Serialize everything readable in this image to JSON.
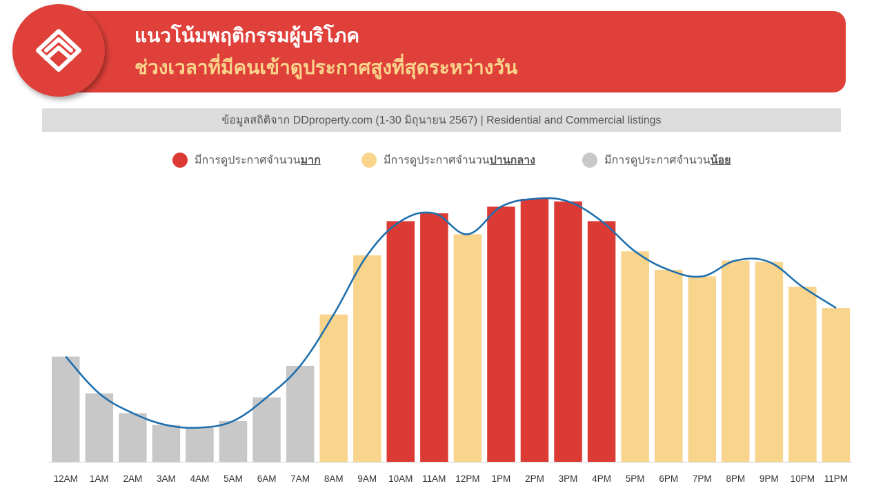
{
  "header": {
    "title_line1": "แนวโน้มพฤติกรรมผู้บริโภค",
    "title_line2": "ช่วงเวลาที่มีคนเข้าดูประกาศสูงที่สุดระหว่างวัน",
    "logo_icon": "ddproperty-house-logo-icon"
  },
  "source_text": "ข้อมูลสถิติจาก DDproperty.com (1-30 มิถุนายน 2567) | Residential and Commercial listings",
  "legend": [
    {
      "prefix": "มีการดูประกาศจำนวน",
      "emphasis": "มาก",
      "color": "#db3b34"
    },
    {
      "prefix": "มีการดูประกาศจำนวน",
      "emphasis": "ปานกลาง",
      "color": "#f8d48d"
    },
    {
      "prefix": "มีการดูประกาศจำนวน",
      "emphasis": "น้อย",
      "color": "#c8c8c8"
    }
  ],
  "colors": {
    "high": "#db3b34",
    "medium": "#f8d48d",
    "low": "#c8c8c8",
    "trend_line": "#1f6fae",
    "banner": "#e0403a"
  },
  "chart_data": {
    "type": "bar",
    "categories": [
      "12AM",
      "1AM",
      "2AM",
      "3AM",
      "4AM",
      "5AM",
      "6AM",
      "7AM",
      "8AM",
      "9AM",
      "10AM",
      "11AM",
      "12PM",
      "1PM",
      "2PM",
      "3PM",
      "4PM",
      "5PM",
      "6PM",
      "7PM",
      "8PM",
      "9PM",
      "10PM",
      "11PM"
    ],
    "values": [
      40,
      26,
      18.5,
      14,
      13,
      15.5,
      24.5,
      36.5,
      56,
      78.5,
      91.5,
      94.5,
      86.5,
      97,
      100,
      99,
      91.5,
      80,
      73,
      70.5,
      76.5,
      76,
      66.5,
      58.5
    ],
    "levels": [
      "low",
      "low",
      "low",
      "low",
      "low",
      "low",
      "low",
      "low",
      "medium",
      "medium",
      "high",
      "high",
      "medium",
      "high",
      "high",
      "high",
      "high",
      "medium",
      "medium",
      "medium",
      "medium",
      "medium",
      "medium",
      "medium"
    ],
    "trend_values": [
      40,
      26,
      18.5,
      14,
      13,
      15.5,
      24.5,
      36.5,
      56,
      78.5,
      91.5,
      94.5,
      86.5,
      97,
      100,
      99,
      91.5,
      80,
      73,
      70.5,
      76.5,
      76,
      66.5,
      58.5
    ],
    "ylim": [
      0,
      100
    ],
    "grid": false,
    "legend_position": "top"
  }
}
